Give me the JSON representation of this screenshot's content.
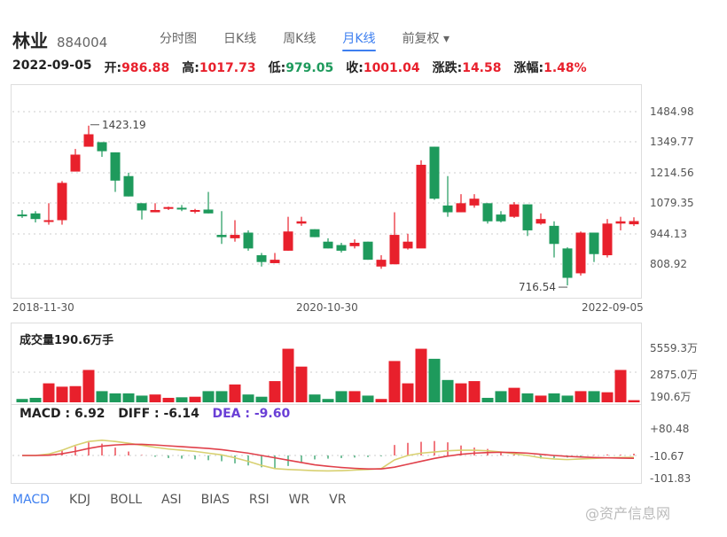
{
  "header": {
    "title": "林业",
    "code": "884004"
  },
  "tabs": [
    {
      "label": "分时图",
      "active": false
    },
    {
      "label": "日K线",
      "active": false
    },
    {
      "label": "周K线",
      "active": false
    },
    {
      "label": "月K线",
      "active": true
    },
    {
      "label": "前复权 ▾",
      "active": false
    }
  ],
  "info": {
    "date": "2022-09-05",
    "open_label": "开:",
    "open": "986.88",
    "high_label": "高:",
    "high": "1017.73",
    "low_label": "低:",
    "low": "979.05",
    "close_label": "收:",
    "close": "1001.04",
    "change_label": "涨跌:",
    "change": "14.58",
    "pct_label": "涨幅:",
    "pct": "1.48%"
  },
  "price_axis": [
    "1484.98",
    "1349.77",
    "1214.56",
    "1079.35",
    "944.13",
    "808.92"
  ],
  "date_axis": [
    "2018-11-30",
    "2020-10-30",
    "2022-09-05"
  ],
  "volume": {
    "label": "成交量190.6万手",
    "axis": [
      "5559.3万",
      "2875.0万",
      "190.6万"
    ]
  },
  "macd": {
    "macd_label": "MACD : 6.92",
    "diff_label": "DIFF : -6.14",
    "dea_label": "DEA : -9.60",
    "axis": [
      "+80.48",
      "-10.67",
      "-101.83"
    ]
  },
  "indicators": [
    {
      "label": "MACD",
      "active": true
    },
    {
      "label": "KDJ",
      "active": false
    },
    {
      "label": "BOLL",
      "active": false
    },
    {
      "label": "ASI",
      "active": false
    },
    {
      "label": "BIAS",
      "active": false
    },
    {
      "label": "RSI",
      "active": false
    },
    {
      "label": "WR",
      "active": false
    },
    {
      "label": "VR",
      "active": false
    }
  ],
  "watermark": "@资产信息网",
  "colors": {
    "up": "#e8202c",
    "down": "#1e9a5c",
    "accent": "#3d7ff0",
    "dea": "#6a3fd6",
    "diff_line": "#d8d070",
    "dea_line": "#e0404a"
  },
  "chart_data": {
    "type": "candlestick",
    "title": "林业 884004 月K线",
    "y_ticks": [
      1484.98,
      1349.77,
      1214.56,
      1079.35,
      944.13,
      808.92
    ],
    "x_ticks": [
      "2018-11-30",
      "2020-10-30",
      "2022-09-05"
    ],
    "annotations": [
      {
        "label": "1423.19",
        "type": "max"
      },
      {
        "label": "716.54",
        "type": "min"
      }
    ],
    "ohlc": [
      [
        1030,
        1025,
        1050,
        1015
      ],
      [
        1035,
        1010,
        1045,
        995
      ],
      [
        1000,
        1005,
        1080,
        985
      ],
      [
        1005,
        1170,
        1178,
        985
      ],
      [
        1220,
        1295,
        1320,
        1295
      ],
      [
        1330,
        1385,
        1423.19,
        1330
      ],
      [
        1350,
        1310,
        1350,
        1285
      ],
      [
        1305,
        1180,
        1305,
        1130
      ],
      [
        1200,
        1110,
        1215,
        1110
      ],
      [
        1080,
        1048,
        1080,
        1008
      ],
      [
        1040,
        1050,
        1080,
        1040
      ],
      [
        1055,
        1063,
        1065,
        1050
      ],
      [
        1060,
        1055,
        1072,
        1045
      ],
      [
        1050,
        1050,
        1055,
        1035
      ],
      [
        1052,
        1035,
        1130,
        1035
      ],
      [
        940,
        930,
        1045,
        900
      ],
      [
        925,
        940,
        1005,
        910
      ],
      [
        950,
        880,
        960,
        870
      ],
      [
        850,
        820,
        860,
        800
      ],
      [
        815,
        830,
        860,
        815
      ],
      [
        870,
        955,
        1020,
        870
      ],
      [
        990,
        1000,
        1020,
        980
      ],
      [
        965,
        930,
        965,
        930
      ],
      [
        910,
        880,
        925,
        880
      ],
      [
        895,
        870,
        905,
        862
      ],
      [
        890,
        905,
        920,
        880
      ],
      [
        910,
        830,
        910,
        830
      ],
      [
        800,
        830,
        850,
        790
      ],
      [
        810,
        940,
        1040,
        810
      ],
      [
        880,
        910,
        945,
        875
      ],
      [
        880,
        1250,
        1270,
        1250
      ],
      [
        1330,
        1100,
        1330,
        1095
      ],
      [
        1070,
        1040,
        1200,
        1020
      ],
      [
        1040,
        1080,
        1120,
        1040
      ],
      [
        1070,
        1100,
        1120,
        1060
      ],
      [
        1080,
        1000,
        1080,
        990
      ],
      [
        1030,
        1000,
        1045,
        995
      ],
      [
        1020,
        1075,
        1085,
        1015
      ],
      [
        1075,
        960,
        1075,
        935
      ],
      [
        990,
        1010,
        1035,
        985
      ],
      [
        980,
        900,
        1000,
        840
      ],
      [
        880,
        750,
        885,
        716.54
      ],
      [
        770,
        950,
        955,
        760
      ],
      [
        950,
        855,
        950,
        820
      ],
      [
        850,
        990,
        1010,
        840
      ],
      [
        990,
        1000,
        1020,
        960
      ],
      [
        986.88,
        1001.04,
        1017.73,
        979.05
      ]
    ],
    "volume_wan": [
      300,
      400,
      1700,
      1400,
      1450,
      2900,
      1000,
      800,
      800,
      600,
      700,
      400,
      450,
      500,
      1000,
      1000,
      1600,
      700,
      500,
      1900,
      4800,
      3200,
      700,
      300,
      1000,
      1000,
      600,
      300,
      3700,
      1700,
      4800,
      3900,
      2000,
      1700,
      1900,
      400,
      1000,
      1300,
      800,
      600,
      800,
      600,
      1000,
      1000,
      900,
      2900,
      190.6
    ],
    "macd_hist": [
      0,
      0,
      8,
      20,
      35,
      50,
      45,
      30,
      15,
      2,
      -5,
      -10,
      -12,
      -15,
      -18,
      -22,
      -30,
      -38,
      -45,
      -50,
      -40,
      -25,
      -15,
      -12,
      -10,
      -8,
      -6,
      -3,
      40,
      48,
      52,
      55,
      50,
      38,
      30,
      25,
      12,
      4,
      -2,
      -12,
      -10,
      -8,
      -3,
      2,
      4,
      3,
      6.92
    ],
    "diff": [
      0,
      0,
      5,
      18,
      35,
      48,
      52,
      48,
      42,
      35,
      28,
      22,
      18,
      14,
      8,
      2,
      -8,
      -20,
      -34,
      -45,
      -48,
      -50,
      -52,
      -53,
      -52,
      -50,
      -48,
      -45,
      -15,
      0,
      8,
      12,
      16,
      18,
      18,
      16,
      12,
      6,
      0,
      -8,
      -12,
      -14,
      -12,
      -10,
      -8,
      -7,
      -6.14
    ],
    "dea": [
      0,
      0,
      1,
      6,
      14,
      24,
      32,
      36,
      38,
      38,
      36,
      33,
      30,
      27,
      24,
      20,
      14,
      8,
      0,
      -8,
      -16,
      -24,
      -32,
      -37,
      -41,
      -44,
      -46,
      -46,
      -40,
      -30,
      -20,
      -10,
      -2,
      4,
      8,
      10,
      11,
      10,
      8,
      4,
      0,
      -3,
      -5,
      -7,
      -8,
      -9,
      -9.6
    ],
    "volume_ticks": [
      "5559.3万",
      "2875.0万",
      "190.6万"
    ],
    "macd_ticks": [
      "+80.48",
      "-10.67",
      "-101.83"
    ]
  }
}
